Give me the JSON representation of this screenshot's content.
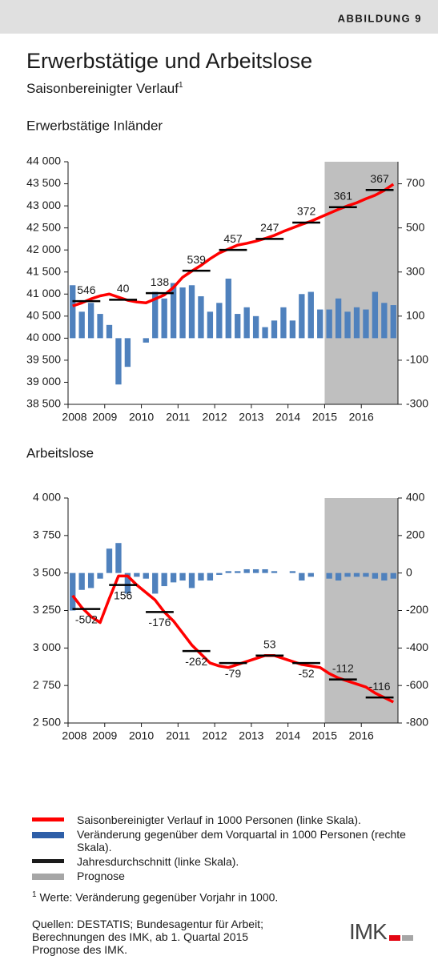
{
  "header": {
    "label": "ABBILDUNG 9"
  },
  "title": "Erwerbstätige und Arbeitslose",
  "subtitle": "Saisonbereinigter Verlauf",
  "subtitle_note": "1",
  "chart_data": [
    {
      "type": "combo",
      "title": "Erwerbstätige Inländer",
      "xlim": [
        2008,
        2017
      ],
      "xticks": [
        2008,
        2009,
        2010,
        2011,
        2012,
        2013,
        2014,
        2015,
        2016
      ],
      "ylim": [
        38500,
        44000
      ],
      "yticks": [
        {
          "value": 38500,
          "label": "38 500"
        },
        {
          "value": 39000,
          "label": "39 000"
        },
        {
          "value": 39500,
          "label": "39 500"
        },
        {
          "value": 40000,
          "label": "40 000"
        },
        {
          "value": 40500,
          "label": "40 500"
        },
        {
          "value": 41000,
          "label": "41 000"
        },
        {
          "value": 41500,
          "label": "41 500"
        },
        {
          "value": 42000,
          "label": "42 000"
        },
        {
          "value": 42500,
          "label": "42 500"
        },
        {
          "value": 43000,
          "label": "43 000"
        },
        {
          "value": 43500,
          "label": "43 500"
        },
        {
          "value": 44000,
          "label": "44 000"
        }
      ],
      "y2lim": [
        -300,
        800
      ],
      "y2ticks": [
        -300,
        -100,
        100,
        300,
        500,
        700
      ],
      "shade": [
        2015,
        2017
      ],
      "shade_color": "#bfbfbf",
      "x": [
        2008.125,
        2008.375,
        2008.625,
        2008.875,
        2009.125,
        2009.375,
        2009.625,
        2009.875,
        2010.125,
        2010.375,
        2010.625,
        2010.875,
        2011.125,
        2011.375,
        2011.625,
        2011.875,
        2012.125,
        2012.375,
        2012.625,
        2012.875,
        2013.125,
        2013.375,
        2013.625,
        2013.875,
        2014.125,
        2014.375,
        2014.625,
        2014.875,
        2015.125,
        2015.375,
        2015.625,
        2015.875,
        2016.125,
        2016.375,
        2016.625,
        2016.875
      ],
      "series": [
        {
          "type": "bar",
          "axis": "y2",
          "color": "#4f81bd",
          "values": [
            240,
            120,
            160,
            110,
            60,
            -210,
            -130,
            0,
            -20,
            210,
            180,
            250,
            230,
            240,
            190,
            120,
            160,
            270,
            110,
            140,
            100,
            50,
            80,
            140,
            80,
            200,
            210,
            130,
            130,
            180,
            120,
            140,
            130,
            210,
            160,
            150
          ]
        },
        {
          "type": "line",
          "color": "#ff0000",
          "values": [
            40730,
            40800,
            40890,
            40960,
            41000,
            40930,
            40860,
            40820,
            40800,
            40890,
            40980,
            41150,
            41380,
            41520,
            41650,
            41800,
            41930,
            42020,
            42110,
            42150,
            42200,
            42260,
            42330,
            42420,
            42500,
            42580,
            42650,
            42740,
            42830,
            42920,
            43000,
            43070,
            43160,
            43240,
            43350,
            43490
          ]
        }
      ],
      "annual": {
        "color": "#000000",
        "x": [
          2008,
          2009,
          2010,
          2011,
          2012,
          2013,
          2014,
          2015,
          2016
        ],
        "values": [
          40840,
          40870,
          41020,
          41530,
          42000,
          42250,
          42620,
          42970,
          43360
        ],
        "labels": [
          546,
          40,
          138,
          539,
          457,
          247,
          372,
          361,
          367
        ]
      }
    },
    {
      "type": "combo",
      "title": "Arbeitslose",
      "xlim": [
        2008,
        2017
      ],
      "xticks": [
        2008,
        2009,
        2010,
        2011,
        2012,
        2013,
        2014,
        2015,
        2016
      ],
      "ylim": [
        2500,
        4000
      ],
      "yticks": [
        {
          "value": 2500,
          "label": "2 500"
        },
        {
          "value": 2750,
          "label": "2 750"
        },
        {
          "value": 3000,
          "label": "3 000"
        },
        {
          "value": 3250,
          "label": "3 250"
        },
        {
          "value": 3500,
          "label": "3 500"
        },
        {
          "value": 3750,
          "label": "3 750"
        },
        {
          "value": 4000,
          "label": "4 000"
        }
      ],
      "y2lim": [
        -800,
        400
      ],
      "y2ticks": [
        -800,
        -600,
        -400,
        -200,
        0,
        200,
        400
      ],
      "shade": [
        2015,
        2017
      ],
      "shade_color": "#bfbfbf",
      "x": [
        2008.125,
        2008.375,
        2008.625,
        2008.875,
        2009.125,
        2009.375,
        2009.625,
        2009.875,
        2010.125,
        2010.375,
        2010.625,
        2010.875,
        2011.125,
        2011.375,
        2011.625,
        2011.875,
        2012.125,
        2012.375,
        2012.625,
        2012.875,
        2013.125,
        2013.375,
        2013.625,
        2013.875,
        2014.125,
        2014.375,
        2014.625,
        2014.875,
        2015.125,
        2015.375,
        2015.625,
        2015.875,
        2016.125,
        2016.375,
        2016.625,
        2016.875
      ],
      "series": [
        {
          "type": "bar",
          "axis": "y2",
          "color": "#4f81bd",
          "values": [
            -200,
            -90,
            -80,
            -30,
            130,
            160,
            -110,
            -20,
            -30,
            -110,
            -70,
            -50,
            -40,
            -80,
            -40,
            -40,
            -10,
            10,
            10,
            20,
            20,
            20,
            10,
            0,
            10,
            -40,
            -20,
            0,
            -30,
            -40,
            -20,
            -20,
            -20,
            -30,
            -40,
            -30
          ]
        },
        {
          "type": "line",
          "color": "#ff0000",
          "values": [
            3350,
            3270,
            3210,
            3170,
            3330,
            3480,
            3480,
            3420,
            3370,
            3320,
            3240,
            3180,
            3100,
            3020,
            2960,
            2900,
            2880,
            2870,
            2890,
            2910,
            2930,
            2950,
            2950,
            2930,
            2910,
            2890,
            2880,
            2870,
            2830,
            2800,
            2780,
            2760,
            2740,
            2700,
            2670,
            2640
          ]
        }
      ],
      "annual": {
        "color": "#000000",
        "x": [
          2008,
          2009,
          2010,
          2011,
          2012,
          2013,
          2014,
          2015,
          2016
        ],
        "values": [
          3260,
          3420,
          3240,
          2980,
          2900,
          2950,
          2900,
          2790,
          2670
        ],
        "labels": [
          -502,
          156,
          -176,
          -262,
          -79,
          53,
          -52,
          -112,
          -116
        ]
      }
    }
  ],
  "legend": [
    {
      "label": "Saisonbereinigter Verlauf in 1000 Personen (linke Skala).",
      "color": "#ff0000",
      "kind": "line"
    },
    {
      "label": "Veränderung gegenüber dem Vorquartal in 1000 Personen (rechte Skala).",
      "color": "#2e5fa8",
      "kind": "box"
    },
    {
      "label": "Jahresdurchschnitt (linke Skala).",
      "color": "#1a1a1a",
      "kind": "line"
    },
    {
      "label": "Prognose",
      "color": "#a6a6a6",
      "kind": "box"
    }
  ],
  "footnote": {
    "marker": "1",
    "text": "Werte: Veränderung gegenüber Vorjahr in 1000."
  },
  "sources": "Quellen: DESTATIS; Bundesagentur für Arbeit; Berechnungen des IMK, ab 1. Quartal 2015 Prognose des IMK.",
  "logo": "IMK"
}
